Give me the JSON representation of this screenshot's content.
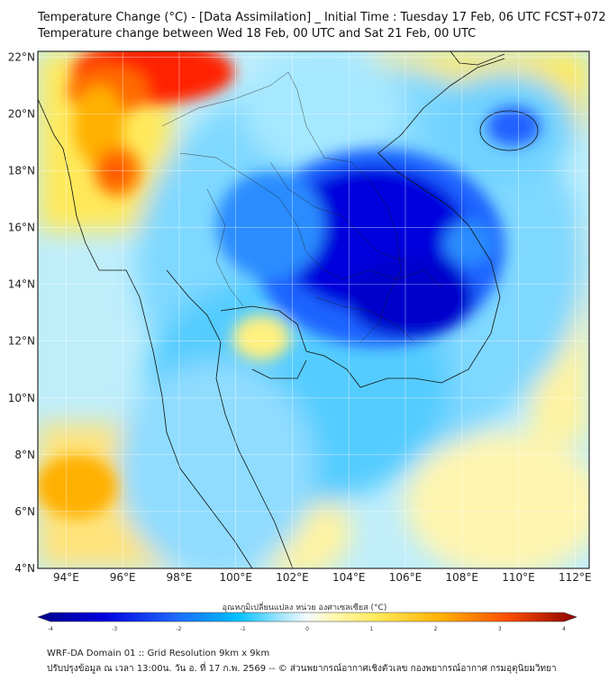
{
  "title": {
    "line1": "Temperature Change (°C) - [Data Assimilation] _ Initial Time : Tuesday 17 Feb, 06 UTC FCST+072",
    "line2": "Temperature change between Wed 18 Feb, 00 UTC and Sat 21 Feb, 00 UTC"
  },
  "map": {
    "lat_labels": [
      "22°N",
      "20°N",
      "18°N",
      "16°N",
      "14°N",
      "12°N",
      "10°N",
      "8°N",
      "6°N",
      "4°N"
    ],
    "lon_labels": [
      "94°E",
      "96°E",
      "98°E",
      "100°E",
      "102°E",
      "104°E",
      "106°E",
      "108°E",
      "110°E",
      "112°E"
    ],
    "lon_range": [
      93,
      112.5
    ],
    "lat_range": [
      4,
      22.2
    ],
    "features": [
      {
        "name": "warm-anomaly-north-myanmar",
        "lon": 96,
        "lat": 21.5,
        "value": 3.5
      },
      {
        "name": "warm-anomaly-west-myanmar",
        "lon": 95.5,
        "lat": 18,
        "value": 3.0
      },
      {
        "name": "warm-anomaly-andaman-sea",
        "lon": 94.5,
        "lat": 6.5,
        "value": 2.5
      },
      {
        "name": "warm-anomaly-gulf-of-thailand",
        "lon": 101,
        "lat": 12,
        "value": 1.0
      },
      {
        "name": "cold-anomaly-cambodia-laos",
        "lon": 105,
        "lat": 15,
        "value": -3.5
      },
      {
        "name": "cold-anomaly-hainan",
        "lon": 110,
        "lat": 19.8,
        "value": -2.5
      }
    ]
  },
  "colorbar": {
    "title": "อุณหภูมิเปลี่ยนแปลง หน่วย องศาเซลเซียส (°C)",
    "ticks": [
      "-4",
      "-3",
      "-2",
      "-1",
      "0",
      "1",
      "2",
      "3",
      "4"
    ],
    "min": -4,
    "max": 4
  },
  "colors": {
    "deep_blue": "#0000cc",
    "blue": "#1e64ff",
    "cyan": "#00bfff",
    "light_cyan": "#a0e6ff",
    "neutral": "#eefaff",
    "yellow": "#ffe95a",
    "orange": "#ff8c00",
    "red": "#e60000"
  },
  "footer": {
    "line1": "WRF-DA Domain 01 :: Grid Resolution 9km x 9km",
    "line2": "ปรับปรุงข้อมูล ณ เวลา 13:00น. วัน อ. ที่ 17 ก.พ. 2569 -- © ส่วนพยากรณ์อากาศเชิงตัวเลข กองพยากรณ์อากาศ กรมอุตุนิยมวิทยา"
  }
}
